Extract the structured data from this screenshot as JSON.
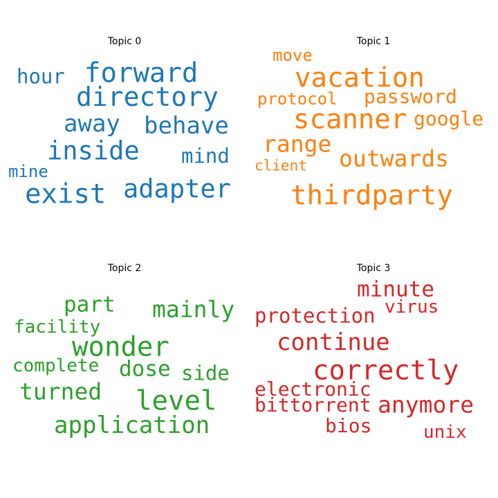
{
  "chart_data": [
    {
      "type": "wordcloud",
      "title": "Topic 0",
      "color": "#1f77b4",
      "words": [
        {
          "text": "forward",
          "weight": 1.0
        },
        {
          "text": "directory",
          "weight": 0.98
        },
        {
          "text": "hour",
          "weight": 0.8
        },
        {
          "text": "away",
          "weight": 0.9
        },
        {
          "text": "behave",
          "weight": 0.9
        },
        {
          "text": "inside",
          "weight": 0.95
        },
        {
          "text": "mind",
          "weight": 0.8
        },
        {
          "text": "mine",
          "weight": 0.7
        },
        {
          "text": "exist",
          "weight": 1.0
        },
        {
          "text": "adapter",
          "weight": 0.95
        }
      ]
    },
    {
      "type": "wordcloud",
      "title": "Topic 1",
      "color": "#ff7f0e",
      "words": [
        {
          "text": "move",
          "weight": 0.7
        },
        {
          "text": "vacation",
          "weight": 1.0
        },
        {
          "text": "protocol",
          "weight": 0.7
        },
        {
          "text": "password",
          "weight": 0.77
        },
        {
          "text": "scanner",
          "weight": 1.0
        },
        {
          "text": "google",
          "weight": 0.77
        },
        {
          "text": "range",
          "weight": 0.87
        },
        {
          "text": "outwards",
          "weight": 0.87
        },
        {
          "text": "client",
          "weight": 0.63
        },
        {
          "text": "thirdparty",
          "weight": 1.0
        }
      ]
    },
    {
      "type": "wordcloud",
      "title": "Topic 2",
      "color": "#2ca02c",
      "words": [
        {
          "text": "part",
          "weight": 0.83
        },
        {
          "text": "mainly",
          "weight": 0.87
        },
        {
          "text": "facility",
          "weight": 0.73
        },
        {
          "text": "wonder",
          "weight": 1.0
        },
        {
          "text": "complete",
          "weight": 0.73
        },
        {
          "text": "dose",
          "weight": 0.83
        },
        {
          "text": "side",
          "weight": 0.8
        },
        {
          "text": "turned",
          "weight": 0.87
        },
        {
          "text": "level",
          "weight": 1.0
        },
        {
          "text": "application",
          "weight": 0.9
        }
      ]
    },
    {
      "type": "wordcloud",
      "title": "Topic 3",
      "color": "#d62728",
      "words": [
        {
          "text": "minute",
          "weight": 0.83
        },
        {
          "text": "virus",
          "weight": 0.73
        },
        {
          "text": "protection",
          "weight": 0.8
        },
        {
          "text": "continue",
          "weight": 0.9
        },
        {
          "text": "correctly",
          "weight": 1.0
        },
        {
          "text": "electronic",
          "weight": 0.77
        },
        {
          "text": "bittorrent",
          "weight": 0.77
        },
        {
          "text": "anymore",
          "weight": 0.87
        },
        {
          "text": "bios",
          "weight": 0.77
        },
        {
          "text": "unix",
          "weight": 0.73
        }
      ]
    }
  ]
}
